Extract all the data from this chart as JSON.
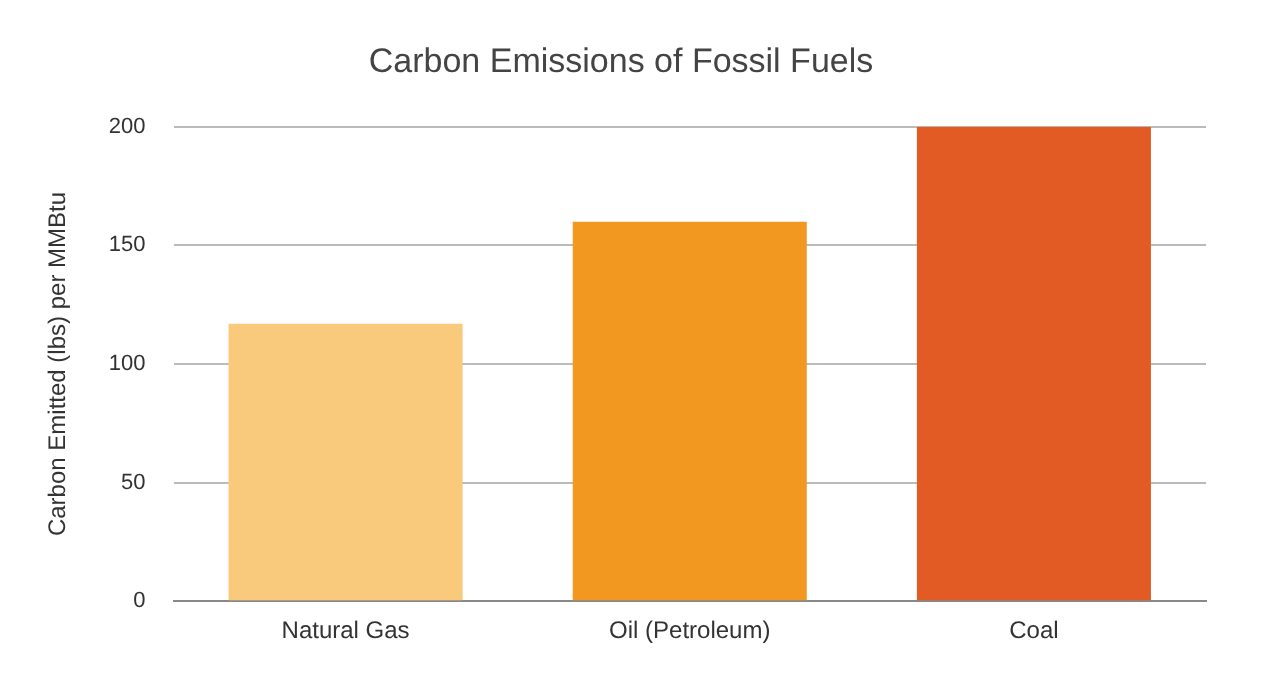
{
  "chart_data": {
    "type": "bar",
    "title": "Carbon Emissions of Fossil Fuels",
    "ylabel": "Carbon Emitted (lbs) per MMBtu",
    "categories": [
      "Natural Gas",
      "Oil (Petroleum)",
      "Coal"
    ],
    "values": [
      117,
      160,
      200
    ],
    "colors": [
      "#f9c97c",
      "#f2971f",
      "#e35b24"
    ],
    "ylim": [
      0,
      200
    ],
    "yticks": [
      0,
      50,
      100,
      150,
      200
    ],
    "grid": "y",
    "legend": false
  }
}
